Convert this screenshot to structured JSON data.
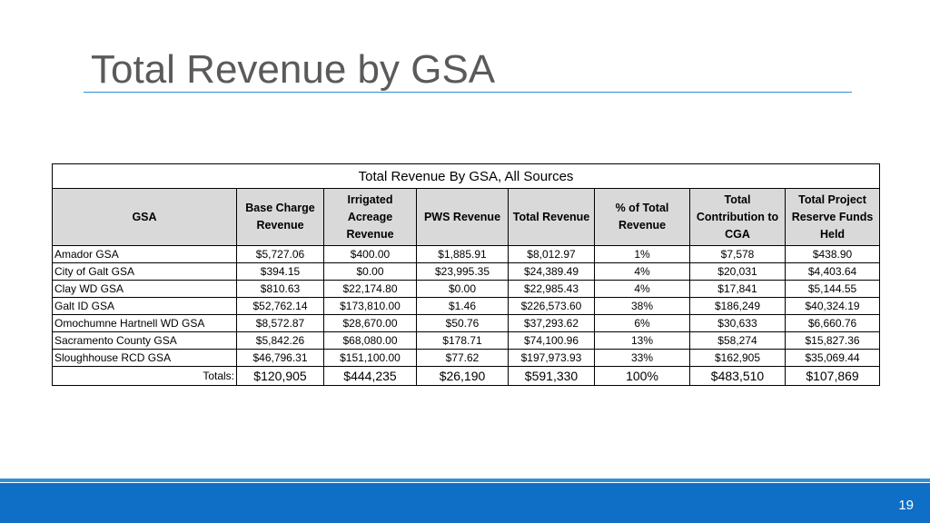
{
  "slide": {
    "title": "Total Revenue by GSA",
    "page_number": "19"
  },
  "table": {
    "caption": "Total Revenue By GSA, All Sources",
    "headers": {
      "gsa": "GSA",
      "base_charge": [
        "Base Charge",
        "Revenue"
      ],
      "irrigated": [
        "Irrigated",
        "Acreage",
        "Revenue"
      ],
      "pws": "PWS Revenue",
      "total": "Total Revenue",
      "pct": [
        "% of Total",
        "Revenue"
      ],
      "contribution": [
        "Total",
        "Contribution to",
        "CGA"
      ],
      "reserve": [
        "Total Project",
        "Reserve Funds",
        "Held"
      ]
    },
    "rows": [
      {
        "gsa": "Amador GSA",
        "base": "$5,727.06",
        "irr": "$400.00",
        "pws": "$1,885.91",
        "total": "$8,012.97",
        "pct": "1%",
        "contrib": "$7,578",
        "reserve": "$438.90"
      },
      {
        "gsa": "City of Galt GSA",
        "base": "$394.15",
        "irr": "$0.00",
        "pws": "$23,995.35",
        "total": "$24,389.49",
        "pct": "4%",
        "contrib": "$20,031",
        "reserve": "$4,403.64"
      },
      {
        "gsa": "Clay WD GSA",
        "base": "$810.63",
        "irr": "$22,174.80",
        "pws": "$0.00",
        "total": "$22,985.43",
        "pct": "4%",
        "contrib": "$17,841",
        "reserve": "$5,144.55"
      },
      {
        "gsa": "Galt ID GSA",
        "base": "$52,762.14",
        "irr": "$173,810.00",
        "pws": "$1.46",
        "total": "$226,573.60",
        "pct": "38%",
        "contrib": "$186,249",
        "reserve": "$40,324.19"
      },
      {
        "gsa": "Omochumne Hartnell WD GSA",
        "base": "$8,572.87",
        "irr": "$28,670.00",
        "pws": "$50.76",
        "total": "$37,293.62",
        "pct": "6%",
        "contrib": "$30,633",
        "reserve": "$6,660.76"
      },
      {
        "gsa": "Sacramento County GSA",
        "base": "$5,842.26",
        "irr": "$68,080.00",
        "pws": "$178.71",
        "total": "$74,100.96",
        "pct": "13%",
        "contrib": "$58,274",
        "reserve": "$15,827.36"
      },
      {
        "gsa": "Sloughhouse RCD GSA",
        "base": "$46,796.31",
        "irr": "$151,100.00",
        "pws": "$77.62",
        "total": "$197,973.93",
        "pct": "33%",
        "contrib": "$162,905",
        "reserve": "$35,069.44"
      }
    ],
    "totals": {
      "label": "Totals:",
      "base": "$120,905",
      "irr": "$444,235",
      "pws": "$26,190",
      "total": "$591,330",
      "pct": "100%",
      "contrib": "$483,510",
      "reserve": "$107,869"
    }
  },
  "colors": {
    "title_rule": "#2e8fd6",
    "footer": "#0f6fc6",
    "header_fill": "#d9d9d9"
  }
}
